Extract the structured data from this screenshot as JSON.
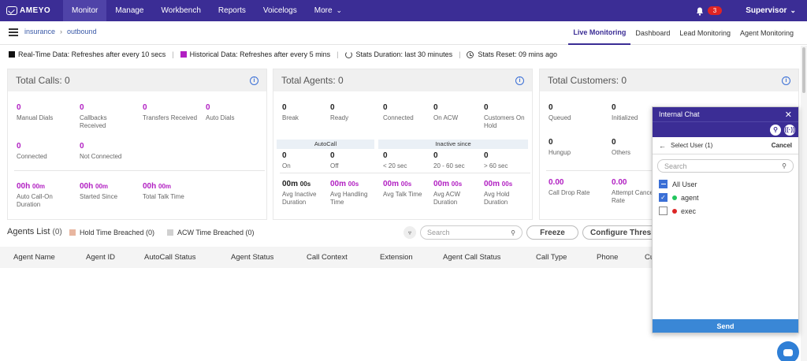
{
  "brand": "AMEYO",
  "nav": {
    "items": [
      {
        "label": "Monitor"
      },
      {
        "label": "Manage"
      },
      {
        "label": "Workbench"
      },
      {
        "label": "Reports"
      },
      {
        "label": "Voicelogs"
      },
      {
        "label": "More"
      }
    ],
    "notifications": "3",
    "user": "Supervisor"
  },
  "breadcrumb": {
    "root": "insurance",
    "child": "outbound"
  },
  "tabs": [
    {
      "label": "Live Monitoring"
    },
    {
      "label": "Dashboard"
    },
    {
      "label": "Lead Monitoring"
    },
    {
      "label": "Agent Monitoring"
    }
  ],
  "legend": {
    "realtime": "Real-Time Data: Refreshes after every 10 secs",
    "historical": "Historical Data: Refreshes after every 5 mins",
    "duration": "Stats Duration: last 30 minutes",
    "reset": "Stats Reset: 09 mins ago",
    "colors": {
      "realtime": "#111111",
      "historical": "#b11fc2"
    }
  },
  "calls": {
    "title": "Total Calls: 0",
    "stats": [
      {
        "value": "0",
        "label": "Manual Dials"
      },
      {
        "value": "0",
        "label": "Callbacks Received"
      },
      {
        "value": "0",
        "label": "Transfers Received"
      },
      {
        "value": "0",
        "label": "Auto Dials"
      },
      {
        "value": "0",
        "label": "Connected"
      },
      {
        "value": "0",
        "label": "Not Connected"
      }
    ],
    "times": [
      {
        "h": "00h",
        "m": "00m",
        "label": "Auto Call-On Duration"
      },
      {
        "h": "00h",
        "m": "00m",
        "label": "Started Since"
      },
      {
        "h": "00h",
        "m": "00m",
        "label": "Total Talk Time"
      }
    ]
  },
  "agents": {
    "title": "Total Agents: 0",
    "stats": [
      {
        "value": "0",
        "label": "Break"
      },
      {
        "value": "0",
        "label": "Ready"
      },
      {
        "value": "0",
        "label": "Connected"
      },
      {
        "value": "0",
        "label": "On ACW"
      },
      {
        "value": "0",
        "label": "Customers On Hold"
      }
    ],
    "autocall": {
      "title": "AutoCall",
      "on": {
        "value": "0",
        "label": "On"
      },
      "off": {
        "value": "0",
        "label": "Off"
      }
    },
    "inactive": {
      "title": "Inactive since",
      "items": [
        {
          "value": "0",
          "label": "< 20 sec"
        },
        {
          "value": "0",
          "label": "20 - 60 sec"
        },
        {
          "value": "0",
          "label": "> 60 sec"
        }
      ]
    },
    "times": [
      {
        "m": "00m",
        "s": "00s",
        "label": "Avg Inactive Duration"
      },
      {
        "m": "00m",
        "s": "00s",
        "label": "Avg Handling Time"
      },
      {
        "m": "00m",
        "s": "00s",
        "label": "Avg Talk Time"
      },
      {
        "m": "00m",
        "s": "00s",
        "label": "Avg ACW Duration"
      },
      {
        "m": "00m",
        "s": "00s",
        "label": "Avg Hold Duration"
      }
    ]
  },
  "customers": {
    "title": "Total Customers: 0",
    "stats": [
      {
        "value": "0",
        "label": "Queued"
      },
      {
        "value": "0",
        "label": "Initialized"
      },
      {
        "value": "0",
        "label": "Hungup"
      },
      {
        "value": "0",
        "label": "Others"
      }
    ],
    "rates": [
      {
        "value": "0.00",
        "label": "Call Drop Rate"
      },
      {
        "value": "0.00",
        "label": "Attempt Cancel Rate"
      }
    ]
  },
  "agentsList": {
    "title": "Agents List",
    "count": "(0)",
    "hold": "Hold Time Breached (0)",
    "acw": "ACW Time Breached (0)",
    "searchPlaceholder": "Search",
    "freeze": "Freeze",
    "configure": "Configure Threshold",
    "columns": [
      "Agent Name",
      "Agent ID",
      "AutoCall Status",
      "Agent Status",
      "Call Context",
      "Extension",
      "Agent Call Status",
      "Call Type",
      "Phone",
      "Cu"
    ]
  },
  "chat": {
    "title": "Internal Chat",
    "selectUser": "Select User (1)",
    "cancel": "Cancel",
    "searchPlaceholder": "Search",
    "allUser": "All User",
    "users": [
      {
        "name": "agent",
        "status": "#22c55e",
        "checked": true
      },
      {
        "name": "exec",
        "status": "#dc2626",
        "checked": false
      }
    ],
    "send": "Send"
  }
}
